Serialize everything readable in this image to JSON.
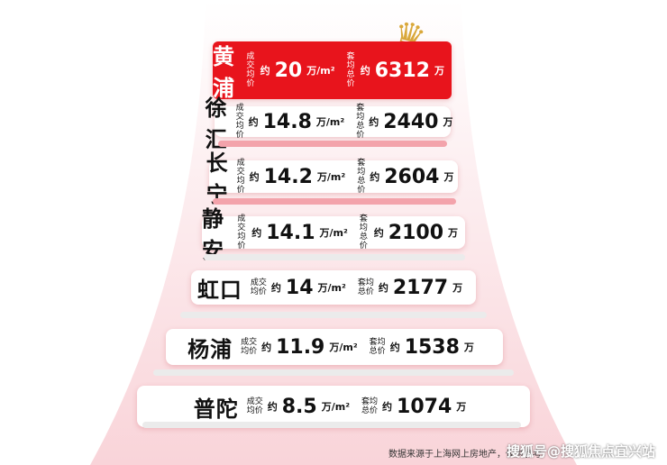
{
  "rows": [
    {
      "district": "黄浦",
      "label1a": "成交",
      "label1b": "均价",
      "approx": "约",
      "price": "20",
      "price_unit": "万/m²",
      "label2a": "套均",
      "label2b": "总价",
      "total": "6312",
      "total_unit": "万"
    },
    {
      "district": "徐汇",
      "label1a": "成交",
      "label1b": "均价",
      "approx": "约",
      "price": "14.8",
      "price_unit": "万/m²",
      "label2a": "套均",
      "label2b": "总价",
      "total": "2440",
      "total_unit": "万"
    },
    {
      "district": "长宁",
      "label1a": "成交",
      "label1b": "均价",
      "approx": "约",
      "price": "14.2",
      "price_unit": "万/m²",
      "label2a": "套均",
      "label2b": "总价",
      "total": "2604",
      "total_unit": "万"
    },
    {
      "district": "静安",
      "label1a": "成交",
      "label1b": "均价",
      "approx": "约",
      "price": "14.1",
      "price_unit": "万/m²",
      "label2a": "套均",
      "label2b": "总价",
      "total": "2100",
      "total_unit": "万"
    },
    {
      "district": "虹口",
      "label1a": "成交",
      "label1b": "均价",
      "approx": "约",
      "price": "14",
      "price_unit": "万/m²",
      "label2a": "套均",
      "label2b": "总价",
      "total": "2177",
      "total_unit": "万"
    },
    {
      "district": "杨浦",
      "label1a": "成交",
      "label1b": "均价",
      "approx": "约",
      "price": "11.9",
      "price_unit": "万/m²",
      "label2a": "套均",
      "label2b": "总价",
      "total": "1538",
      "total_unit": "万"
    },
    {
      "district": "普陀",
      "label1a": "成交",
      "label1b": "均价",
      "approx": "约",
      "price": "8.5",
      "price_unit": "万/m²",
      "label2a": "套均",
      "label2b": "总价",
      "total": "1074",
      "total_unit": "万"
    }
  ],
  "footer": "数据来源于上海网上房地产，仅供参考",
  "watermark": "搜狐号@搜狐焦点宜兴站",
  "colors": {
    "accent": "#e8141c",
    "background": "#fbe3e6"
  }
}
